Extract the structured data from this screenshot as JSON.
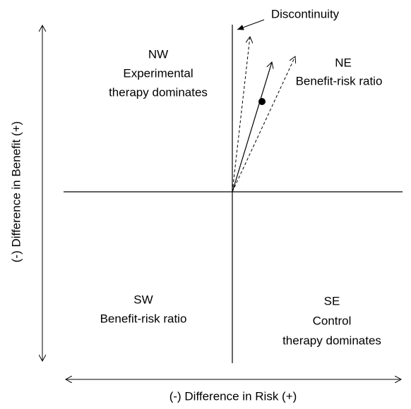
{
  "callout": "Discontinuity",
  "axes": {
    "y_label": "(-) Difference in Benefit (+)",
    "x_label": "(-) Difference in Risk (+)"
  },
  "quadrants": [
    {
      "lines": [
        "NW",
        "Experimental",
        "therapy dominates"
      ]
    },
    {
      "lines": [
        "NE",
        "Benefit-risk ratio"
      ]
    },
    {
      "lines": [
        "SW",
        "Benefit-risk ratio"
      ]
    },
    {
      "lines": [
        "SE",
        "Control",
        "therapy dominates"
      ]
    }
  ]
}
